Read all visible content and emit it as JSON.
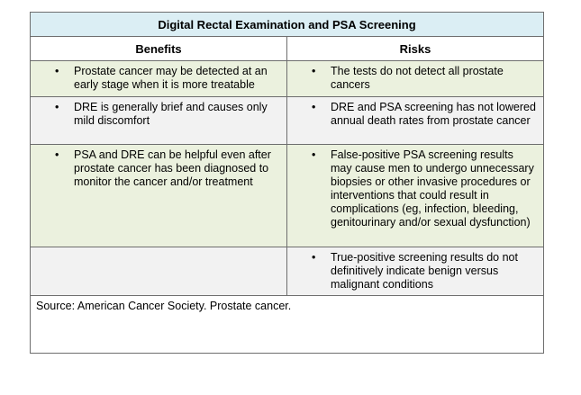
{
  "title": "Digital Rectal Examination and PSA Screening",
  "columns": [
    "Benefits",
    "Risks"
  ],
  "rows": [
    {
      "benefit": "Prostate cancer may be detected at an early stage when it is more treatable",
      "risk": "The tests do not detect all prostate cancers"
    },
    {
      "benefit": "DRE is generally brief and causes only mild discomfort",
      "risk": "DRE and PSA screening has not lowered annual death rates from prostate cancer"
    },
    {
      "benefit": "PSA and DRE can be helpful even after prostate cancer has been diagnosed to monitor the cancer and/or treatment",
      "risk": "False-positive PSA screening results may cause men to undergo unnecessary biopsies or other invasive procedures or interventions that could result in complications (eg, infection, bleeding, genitourinary and/or sexual dysfunction)"
    },
    {
      "risk": "True-positive screening results do not definitively indicate benign versus malignant conditions"
    }
  ],
  "source": "Source: American Cancer Society. Prostate cancer."
}
